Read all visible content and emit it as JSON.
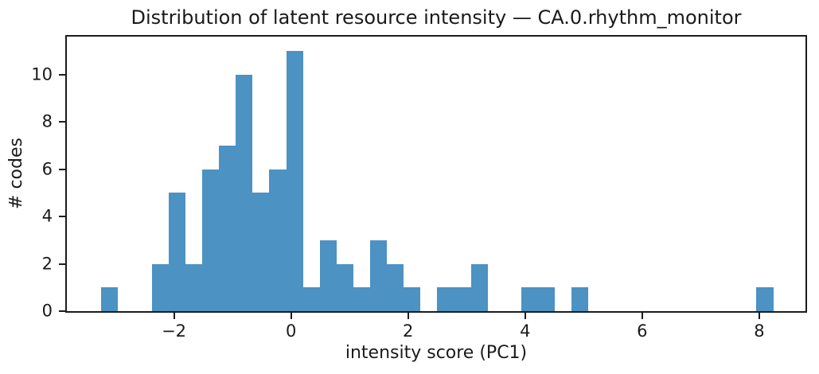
{
  "chart_data": {
    "type": "bar",
    "variant": "histogram",
    "title": "Distribution of latent resource intensity — CA.0.rhythm_monitor",
    "xlabel": "intensity score (PC1)",
    "ylabel": "# codes",
    "bin_start": -3.24,
    "bin_width": 0.287,
    "counts": [
      1,
      0,
      0,
      2,
      5,
      2,
      6,
      7,
      10,
      5,
      6,
      11,
      1,
      3,
      2,
      1,
      3,
      2,
      1,
      0,
      1,
      1,
      2,
      0,
      0,
      1,
      1,
      0,
      1,
      0,
      0,
      0,
      0,
      0,
      0,
      0,
      0,
      0,
      0,
      1
    ],
    "total_count": 76,
    "xlim": [
      -3.83,
      8.79
    ],
    "ylim": [
      0,
      11.6
    ],
    "xticks": [
      {
        "value": -2,
        "label": "−2"
      },
      {
        "value": 0,
        "label": "0"
      },
      {
        "value": 2,
        "label": "2"
      },
      {
        "value": 4,
        "label": "4"
      },
      {
        "value": 6,
        "label": "6"
      },
      {
        "value": 8,
        "label": "8"
      }
    ],
    "yticks": [
      {
        "value": 0,
        "label": "0"
      },
      {
        "value": 2,
        "label": "2"
      },
      {
        "value": 4,
        "label": "4"
      },
      {
        "value": 6,
        "label": "6"
      },
      {
        "value": 8,
        "label": "8"
      },
      {
        "value": 10,
        "label": "10"
      }
    ],
    "grid": false,
    "legend": null,
    "bar_color": "#4c92c3",
    "spine_color": "#1c1c1c",
    "text_color": "#1a1a1a"
  }
}
